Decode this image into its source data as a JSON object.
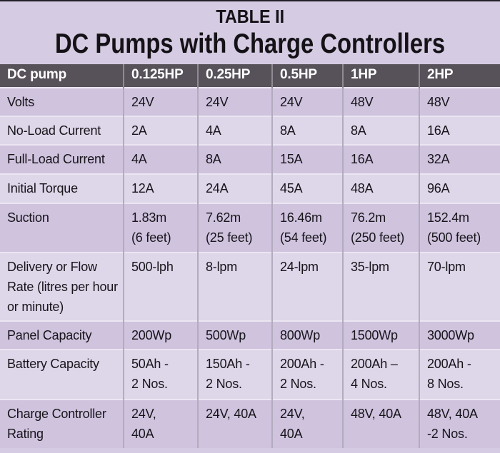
{
  "title": {
    "line1": "TABLE II",
    "line2": "DC Pumps with Charge Controllers"
  },
  "table": {
    "header": [
      "DC pump",
      "0.125HP",
      "0.25HP",
      "0.5HP",
      "1HP",
      "2HP"
    ],
    "rows": [
      {
        "label": "Volts",
        "values": [
          "24V",
          "24V",
          "24V",
          "48V",
          "48V"
        ]
      },
      {
        "label": "No-Load Current",
        "values": [
          "2A",
          "4A",
          "8A",
          "8A",
          "16A"
        ]
      },
      {
        "label": "Full-Load Current",
        "values": [
          "4A",
          "8A",
          "15A",
          "16A",
          "32A"
        ]
      },
      {
        "label": "Initial Torque",
        "values": [
          "12A",
          "24A",
          "45A",
          "48A",
          "96A"
        ]
      },
      {
        "label": "Suction",
        "values": [
          "1.83m\n(6 feet)",
          "7.62m\n(25 feet)",
          "16.46m\n(54 feet)",
          "76.2m\n(250 feet)",
          "152.4m\n(500 feet)"
        ]
      },
      {
        "label": "Delivery or Flow Rate (litres per hour or minute)",
        "values": [
          "500-lph",
          "8-lpm",
          "24-lpm",
          "35-lpm",
          "70-lpm"
        ]
      },
      {
        "label": "Panel Capacity",
        "values": [
          "200Wp",
          "500Wp",
          "800Wp",
          "1500Wp",
          "3000Wp"
        ]
      },
      {
        "label": "Battery Capacity",
        "values": [
          "50Ah -\n2 Nos.",
          "150Ah -\n2 Nos.",
          "200Ah -\n2 Nos.",
          "200Ah –\n4 Nos.",
          "200Ah -\n8 Nos."
        ]
      },
      {
        "label": "Charge Controller Rating",
        "values": [
          "24V,\n40A",
          "24V, 40A",
          "24V,\n40A",
          "48V, 40A",
          "48V, 40A\n-2 Nos."
        ]
      }
    ]
  },
  "colors": {
    "page_background": "#d5cbe2",
    "row_dark": "#cfc3de",
    "row_light": "#ded6e9",
    "header_background": "#57525a",
    "header_text": "#ffffff",
    "body_text": "#17141a",
    "column_rule": "#b3abbe",
    "row_rule": "#ebe6f2"
  }
}
